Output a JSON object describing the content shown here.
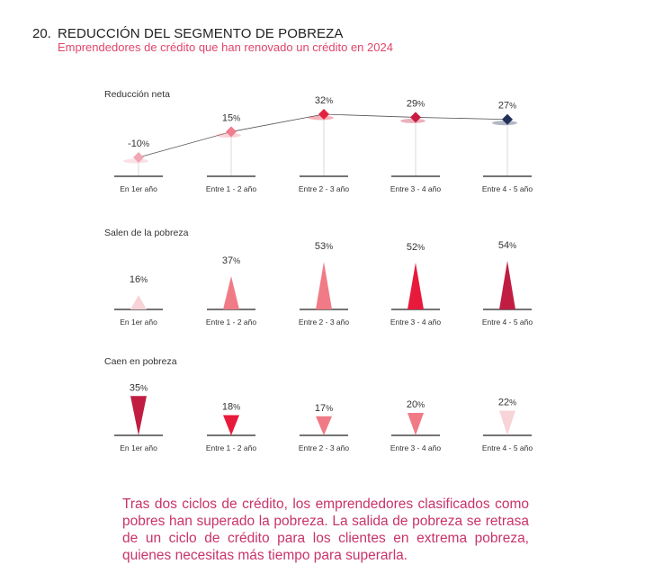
{
  "header": {
    "number": "20.",
    "title": "REDUCCIÓN DEL SEGMENTO DE POBREZA",
    "subtitle": "Emprendedores de crédito que han renovado un crédito en 2024"
  },
  "footer_text": "Tras dos ciclos de crédito, los emprendedores clasificados como pobres han superado la pobreza. La salida de pobreza se retrasa de un ciclo de crédito para los clientes en extrema pobreza, quienes necesitas más tiempo para superarla.",
  "chart_data": [
    {
      "type": "line",
      "title": "Reducción neta",
      "categories": [
        "En 1er año",
        "Entre 1 - 2 año",
        "Entre 2 - 3 año",
        "Entre 3 - 4 año",
        "Entre 4 - 5 año"
      ],
      "values": [
        -10,
        15,
        32,
        29,
        27
      ],
      "value_labels": [
        "-10%",
        "15%",
        "32%",
        "29%",
        "27%"
      ],
      "colors": [
        "#f2a7b4",
        "#ee7d8e",
        "#e1213d",
        "#c81d40",
        "#233058"
      ]
    },
    {
      "type": "bar",
      "title": "Salen de la pobreza",
      "categories": [
        "En 1er año",
        "Entre 1 - 2 año",
        "Entre 2 - 3 año",
        "Entre 3 - 4 año",
        "Entre 4 - 5 año"
      ],
      "values": [
        16,
        37,
        53,
        52,
        54
      ],
      "value_labels": [
        "16%",
        "37%",
        "53%",
        "52%",
        "54%"
      ],
      "colors": [
        "#f8d3d7",
        "#f07b86",
        "#f07b86",
        "#e81a3b",
        "#c11d42"
      ]
    },
    {
      "type": "bar",
      "title": "Caen en pobreza",
      "categories": [
        "En 1er año",
        "Entre 1 - 2 año",
        "Entre 2 - 3 año",
        "Entre 3 - 4 año",
        "Entre 4 - 5 año"
      ],
      "values": [
        35,
        18,
        17,
        20,
        22
      ],
      "value_labels": [
        "35%",
        "18%",
        "17%",
        "20%",
        "22%"
      ],
      "colors": [
        "#c11d42",
        "#e81a3b",
        "#f07b86",
        "#f07b86",
        "#f8d3d7"
      ]
    }
  ]
}
